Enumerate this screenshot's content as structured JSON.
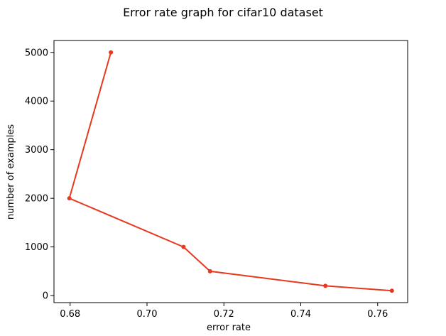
{
  "chart_data": {
    "type": "line",
    "title": "Error rate graph for cifar10 dataset",
    "xlabel": "error rate",
    "ylabel": "number of examples",
    "xlim": [
      0.6758,
      0.7678
    ],
    "ylim": [
      -145,
      5245
    ],
    "xticks": [
      0.68,
      0.7,
      0.72,
      0.74,
      0.76
    ],
    "xtick_labels": [
      "0.68",
      "0.70",
      "0.72",
      "0.74",
      "0.76"
    ],
    "yticks": [
      0,
      1000,
      2000,
      3000,
      4000,
      5000
    ],
    "ytick_labels": [
      "0",
      "1000",
      "2000",
      "3000",
      "4000",
      "5000"
    ],
    "grid": false,
    "series": [
      {
        "color": "#e8381f",
        "marker": "circle",
        "points": [
          {
            "x": 0.6906,
            "y": 5000
          },
          {
            "x": 0.6798,
            "y": 2000
          },
          {
            "x": 0.7095,
            "y": 1000
          },
          {
            "x": 0.7164,
            "y": 500
          },
          {
            "x": 0.7464,
            "y": 200
          },
          {
            "x": 0.7637,
            "y": 100
          }
        ]
      }
    ]
  }
}
